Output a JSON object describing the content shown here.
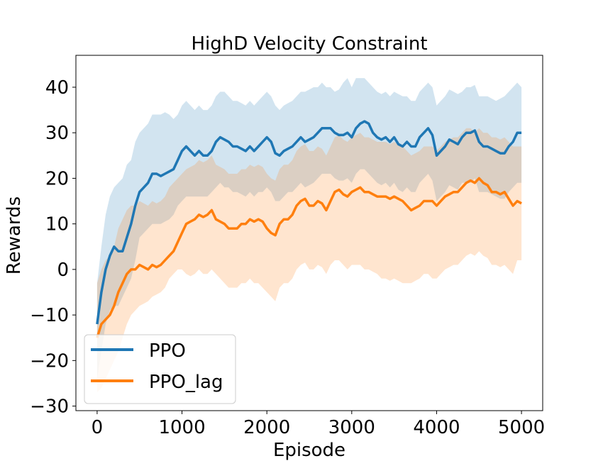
{
  "chart_data": {
    "type": "line",
    "title": "HighD Velocity Constraint",
    "xlabel": "Episode",
    "ylabel": "Rewards",
    "xlim": [
      -250,
      5250
    ],
    "ylim": [
      -31,
      47
    ],
    "xticks": [
      0,
      1000,
      2000,
      3000,
      4000,
      5000
    ],
    "xtick_labels": [
      "0",
      "1000",
      "2000",
      "3000",
      "4000",
      "5000"
    ],
    "yticks": [
      -30,
      -20,
      -10,
      0,
      10,
      20,
      30,
      40
    ],
    "ytick_labels": [
      "−30",
      "−20",
      "−10",
      "0",
      "10",
      "20",
      "30",
      "40"
    ],
    "grid": false,
    "legend_position": "lower-left",
    "series": [
      {
        "name": "PPO",
        "color": "#1f77b4",
        "x": [
          0,
          50,
          100,
          150,
          200,
          250,
          300,
          350,
          400,
          450,
          500,
          550,
          600,
          650,
          700,
          750,
          800,
          850,
          900,
          950,
          1000,
          1050,
          1100,
          1150,
          1200,
          1250,
          1300,
          1350,
          1400,
          1450,
          1500,
          1550,
          1600,
          1650,
          1700,
          1750,
          1800,
          1850,
          1900,
          1950,
          2000,
          2050,
          2100,
          2150,
          2200,
          2250,
          2300,
          2350,
          2400,
          2450,
          2500,
          2550,
          2600,
          2650,
          2700,
          2750,
          2800,
          2850,
          2900,
          2950,
          3000,
          3050,
          3100,
          3150,
          3200,
          3250,
          3300,
          3350,
          3400,
          3450,
          3500,
          3550,
          3600,
          3650,
          3700,
          3750,
          3800,
          3850,
          3900,
          3950,
          4000,
          4050,
          4100,
          4150,
          4200,
          4250,
          4300,
          4350,
          4400,
          4450,
          4500,
          4550,
          4600,
          4650,
          4700,
          4750,
          4800,
          4850,
          4900,
          4950,
          5000
        ],
        "y": [
          -12,
          -5,
          0,
          3,
          5,
          4,
          4,
          7,
          10,
          14,
          17,
          18,
          19,
          21,
          21,
          20.5,
          21,
          21.5,
          22,
          24,
          26,
          27,
          26,
          25,
          26,
          25,
          25,
          26,
          28,
          29,
          28.5,
          28,
          27,
          27,
          26.5,
          26,
          27,
          26,
          27,
          28,
          29,
          28,
          25.5,
          25,
          26,
          26.5,
          27,
          28,
          29,
          28,
          28.5,
          29,
          30,
          31,
          31,
          31,
          30,
          29.5,
          29.5,
          30,
          29,
          31,
          32,
          32.5,
          32,
          30,
          29,
          28.5,
          29,
          28,
          29,
          27.5,
          27,
          28,
          27,
          27,
          29,
          30,
          31,
          29.5,
          25,
          26,
          27,
          28.5,
          28,
          27.5,
          29,
          30,
          30,
          30.5,
          28,
          27,
          27,
          26.5,
          26,
          25.5,
          25.5,
          27,
          28,
          30,
          30
        ],
        "band_low": [
          -24,
          -18,
          -12,
          -9,
          -8,
          -8,
          -6,
          -4,
          -2,
          2,
          7,
          8,
          9,
          10,
          10,
          10,
          10.5,
          11,
          12,
          14,
          15,
          16,
          16,
          16,
          16,
          16,
          16,
          17,
          18,
          19,
          18,
          18,
          17,
          17,
          16.5,
          16,
          17,
          16,
          17,
          17,
          18,
          17,
          15,
          15,
          16,
          17,
          17,
          18,
          19,
          18,
          18.5,
          19,
          20,
          21,
          21,
          21,
          20,
          19.5,
          19.5,
          20,
          19,
          21,
          22,
          22,
          21,
          20,
          19,
          18.5,
          19,
          18,
          19,
          17.5,
          17,
          18,
          17,
          17,
          19,
          20,
          21,
          19.5,
          15,
          16,
          17,
          18.5,
          18,
          17.5,
          19,
          19,
          19,
          20,
          17,
          17,
          17,
          16.5,
          16,
          15.5,
          15.5,
          17,
          18,
          19,
          19
        ],
        "band_high": [
          -3,
          5,
          12,
          16,
          18,
          19,
          20,
          23,
          24,
          28,
          30,
          31,
          32,
          34,
          34,
          34,
          34.5,
          34,
          33,
          34,
          36,
          37,
          36,
          35,
          36,
          35,
          35,
          36,
          38,
          39,
          39,
          38,
          37,
          37,
          36.5,
          36,
          37,
          36,
          37,
          38,
          39,
          38,
          36,
          35,
          36,
          36.5,
          37,
          38,
          39,
          39,
          39.5,
          40,
          40,
          41,
          40,
          40,
          39,
          39.5,
          41,
          42,
          40,
          42,
          42,
          42,
          41,
          40,
          39,
          38.5,
          39,
          38,
          39,
          38.5,
          38,
          38,
          37,
          37,
          39,
          40,
          41,
          40,
          36,
          37,
          38,
          39.5,
          39,
          38.5,
          39,
          40,
          40,
          40.5,
          38,
          38,
          38,
          37.5,
          37,
          37.5,
          38,
          39,
          40,
          41,
          40
        ]
      },
      {
        "name": "PPO_lag",
        "color": "#ff7f0e",
        "x": [
          0,
          50,
          100,
          150,
          200,
          250,
          300,
          350,
          400,
          450,
          500,
          550,
          600,
          650,
          700,
          750,
          800,
          850,
          900,
          950,
          1000,
          1050,
          1100,
          1150,
          1200,
          1250,
          1300,
          1350,
          1400,
          1450,
          1500,
          1550,
          1600,
          1650,
          1700,
          1750,
          1800,
          1850,
          1900,
          1950,
          2000,
          2050,
          2100,
          2150,
          2200,
          2250,
          2300,
          2350,
          2400,
          2450,
          2500,
          2550,
          2600,
          2650,
          2700,
          2750,
          2800,
          2850,
          2900,
          2950,
          3000,
          3050,
          3100,
          3150,
          3200,
          3250,
          3300,
          3350,
          3400,
          3450,
          3500,
          3550,
          3600,
          3650,
          3700,
          3750,
          3800,
          3850,
          3900,
          3950,
          4000,
          4050,
          4100,
          4150,
          4200,
          4250,
          4300,
          4350,
          4400,
          4450,
          4500,
          4550,
          4600,
          4650,
          4700,
          4750,
          4800,
          4850,
          4900,
          4950,
          5000
        ],
        "y": [
          -15,
          -12,
          -11,
          -10,
          -8,
          -5,
          -3,
          -1,
          0,
          0,
          1,
          0.5,
          0,
          1,
          0.5,
          1,
          2,
          3,
          4,
          6,
          8,
          10,
          10.5,
          11,
          12,
          11.5,
          12,
          13,
          11,
          10.5,
          10,
          9,
          9,
          9,
          10,
          10,
          11,
          10.5,
          11,
          10.5,
          9,
          8,
          7.5,
          10,
          11,
          11,
          12,
          14,
          15,
          15.5,
          14,
          14,
          15,
          14.5,
          13,
          15,
          17,
          17.5,
          16.5,
          16,
          17,
          17.5,
          18,
          17,
          17,
          16.5,
          16,
          16,
          16,
          15.5,
          16,
          15.5,
          15,
          14,
          13,
          13.5,
          14,
          15,
          15,
          15,
          14,
          15,
          16,
          16.5,
          17,
          17,
          18,
          19,
          19.5,
          19,
          20,
          19,
          18.5,
          17,
          17,
          16.5,
          17,
          15.5,
          14,
          15,
          14.5
        ],
        "band_low": [
          -27,
          -26,
          -24,
          -22,
          -20,
          -18,
          -15,
          -12,
          -10,
          -9,
          -8,
          -7.5,
          -7,
          -6,
          -5.5,
          -5,
          -4,
          -2,
          -1,
          0,
          0,
          -1,
          -1.5,
          -1,
          0,
          -1,
          -1,
          0,
          -1,
          -2,
          -3,
          -4,
          -4,
          -4,
          -3,
          -3,
          -2,
          -3,
          -3,
          -4,
          -5,
          -6,
          -7,
          -4,
          -3,
          -3,
          -2,
          0,
          1,
          1.5,
          0,
          0,
          1,
          0.5,
          -1,
          1,
          2,
          2,
          1,
          0,
          1,
          1,
          1,
          0,
          0,
          -0.5,
          -1,
          -2,
          -2,
          -2.5,
          -2,
          -2.5,
          -3,
          -3,
          -3,
          -2.5,
          -2,
          -1,
          -1,
          -2,
          -2,
          -1,
          0,
          0.5,
          1,
          1,
          2,
          3,
          3.5,
          3,
          4,
          3,
          2.5,
          1,
          1,
          0.5,
          1,
          0,
          -1,
          2,
          2
        ],
        "band_high": [
          -3,
          0,
          2,
          3,
          5,
          9,
          11,
          13,
          14,
          14,
          15,
          14.5,
          14,
          15,
          14.5,
          15,
          16,
          18,
          19,
          20,
          21,
          22,
          22.5,
          23,
          24,
          23.5,
          24,
          25,
          23,
          22.5,
          22,
          21,
          21,
          21,
          22,
          22,
          23,
          22.5,
          23,
          22.5,
          21,
          20,
          19.5,
          22,
          23,
          23,
          24,
          26,
          27,
          27.5,
          26,
          26,
          27,
          26.5,
          25,
          27,
          29,
          29.5,
          28.5,
          28,
          29,
          29.5,
          30,
          29,
          29,
          28.5,
          28,
          28,
          28,
          27.5,
          28,
          27.5,
          27,
          26,
          25,
          25.5,
          26,
          27,
          27,
          27,
          26,
          27,
          28,
          28.5,
          29,
          29,
          30,
          31,
          31,
          30,
          31,
          30,
          30,
          29,
          29,
          28.5,
          29,
          28,
          27,
          27,
          27
        ]
      }
    ]
  }
}
